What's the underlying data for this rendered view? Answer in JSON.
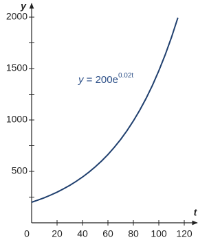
{
  "chart_data": {
    "type": "line",
    "x_label": "t",
    "y_label": "y",
    "annotation": {
      "lhs": "y",
      "rhs": " = 200e",
      "exponent": "0.02t"
    },
    "x": [
      0,
      5,
      10,
      15,
      20,
      25,
      30,
      35,
      40,
      45,
      50,
      55,
      60,
      65,
      70,
      75,
      80,
      85,
      90,
      95,
      100,
      105,
      110,
      115
    ],
    "series": [
      {
        "color": "#1f3f6e",
        "values": [
          200,
          221,
          244,
          270,
          298,
          330,
          364,
          403,
          445,
          492,
          544,
          601,
          664,
          734,
          811,
          896,
          991,
          1095,
          1210,
          1337,
          1478,
          1633,
          1805,
          1995
        ]
      }
    ],
    "xlim": [
      0,
      120
    ],
    "ylim": [
      0,
      2000
    ],
    "xticks": [
      0,
      20,
      40,
      60,
      80,
      100,
      120
    ],
    "yticks": [
      500,
      1000,
      1500,
      2000
    ],
    "yminor": [
      250,
      750,
      1250,
      1750
    ],
    "annotation_color": "#2d5088"
  }
}
